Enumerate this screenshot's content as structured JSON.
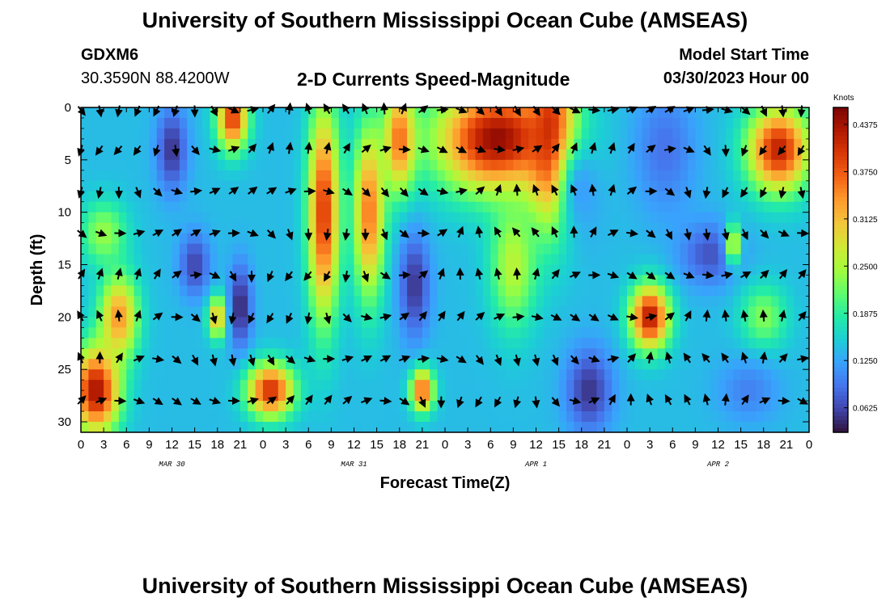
{
  "header": {
    "title": "University of Southern Mississippi Ocean Cube (AMSEAS)",
    "station_id": "GDXM6",
    "coordinates": "30.3590N  88.4200W",
    "subtitle": "2-D Currents Speed-Magnitude",
    "model_start_label": "Model Start Time",
    "model_start_value": "03/30/2023 Hour 00"
  },
  "footer": {
    "title": "University of Southern Mississippi Ocean Cube (AMSEAS)"
  },
  "colors": {
    "palette": [
      "#30123b",
      "#4145ab",
      "#4675ed",
      "#39a2fc",
      "#1bcfd4",
      "#24eca6",
      "#61fc6c",
      "#a4fc3c",
      "#d1e834",
      "#f3c63a",
      "#fe9b2d",
      "#f36315",
      "#d93806",
      "#b11901",
      "#7a0403"
    ]
  },
  "chart_data": {
    "type": "heatmap",
    "title": "2-D Currents Speed-Magnitude",
    "xlabel": "Forecast Time(Z)",
    "ylabel": "Depth (ft)",
    "x_tick_labels": [
      "0",
      "3",
      "6",
      "9",
      "12",
      "15",
      "18",
      "21",
      "0",
      "3",
      "6",
      "9",
      "12",
      "15",
      "18",
      "21",
      "0",
      "3",
      "6",
      "9",
      "12",
      "15",
      "18",
      "21",
      "0",
      "3",
      "6",
      "9",
      "12",
      "15",
      "18",
      "21",
      "0"
    ],
    "x_range_hours": [
      0,
      96
    ],
    "day_labels": [
      {
        "label": "MAR 30",
        "hour": 12
      },
      {
        "label": "MAR 31",
        "hour": 36
      },
      {
        "label": "APR 1",
        "hour": 60
      },
      {
        "label": "APR 2",
        "hour": 84
      }
    ],
    "y_ticks": [
      0,
      5,
      10,
      15,
      20,
      25,
      30
    ],
    "ylim": [
      0,
      31
    ],
    "colorbar": {
      "label": "Knots",
      "range": [
        0.03,
        0.46
      ],
      "ticks": [
        "0.0625",
        "0.1250",
        "0.1875",
        "0.2500",
        "0.3125",
        "0.3750",
        "0.4375"
      ]
    },
    "vector_depths_ft": [
      0,
      4,
      8,
      12,
      16,
      20,
      24,
      28
    ],
    "vector_hours_step": 2.5,
    "speed_field": {
      "description": "Current speed (knots) at depth/time; low values dark blue, high values dark red",
      "base": 0.14,
      "blobs": [
        {
          "hour": 2,
          "depth": 27,
          "value": 0.44,
          "sh": 3,
          "sd": 4
        },
        {
          "hour": 5,
          "depth": 20,
          "value": 0.34,
          "sh": 2.5,
          "sd": 4
        },
        {
          "hour": 3,
          "depth": 12,
          "value": 0.24,
          "sh": 3,
          "sd": 3
        },
        {
          "hour": 12,
          "depth": 4,
          "value": 0.05,
          "sh": 2,
          "sd": 4
        },
        {
          "hour": 20,
          "depth": 1,
          "value": 0.4,
          "sh": 2,
          "sd": 3
        },
        {
          "hour": 18,
          "depth": 20,
          "value": 0.33,
          "sh": 1.2,
          "sd": 2
        },
        {
          "hour": 21,
          "depth": 19,
          "value": 0.04,
          "sh": 1.5,
          "sd": 4
        },
        {
          "hour": 15,
          "depth": 15,
          "value": 0.06,
          "sh": 2,
          "sd": 3
        },
        {
          "hour": 25,
          "depth": 27,
          "value": 0.41,
          "sh": 3,
          "sd": 2.5
        },
        {
          "hour": 32,
          "depth": 10,
          "value": 0.4,
          "sh": 2,
          "sd": 10
        },
        {
          "hour": 38,
          "depth": 10,
          "value": 0.36,
          "sh": 2,
          "sd": 8
        },
        {
          "hour": 42,
          "depth": 3,
          "value": 0.36,
          "sh": 2,
          "sd": 5
        },
        {
          "hour": 44,
          "depth": 17,
          "value": 0.05,
          "sh": 2,
          "sd": 5
        },
        {
          "hour": 45,
          "depth": 27,
          "value": 0.38,
          "sh": 1.5,
          "sd": 2
        },
        {
          "hour": 55,
          "depth": 3,
          "value": 0.45,
          "sh": 8,
          "sd": 5
        },
        {
          "hour": 62,
          "depth": 3,
          "value": 0.42,
          "sh": 3,
          "sd": 8
        },
        {
          "hour": 57,
          "depth": 15,
          "value": 0.26,
          "sh": 3,
          "sd": 6
        },
        {
          "hour": 67,
          "depth": 27,
          "value": 0.05,
          "sh": 3,
          "sd": 4
        },
        {
          "hour": 66,
          "depth": 8,
          "value": 0.12,
          "sh": 3,
          "sd": 5
        },
        {
          "hour": 75,
          "depth": 20,
          "value": 0.43,
          "sh": 2.5,
          "sd": 3
        },
        {
          "hour": 77,
          "depth": 4,
          "value": 0.09,
          "sh": 4,
          "sd": 6
        },
        {
          "hour": 83,
          "depth": 14,
          "value": 0.07,
          "sh": 4,
          "sd": 3
        },
        {
          "hour": 86,
          "depth": 13,
          "value": 0.28,
          "sh": 1,
          "sd": 2
        },
        {
          "hour": 92,
          "depth": 4,
          "value": 0.42,
          "sh": 4,
          "sd": 4
        },
        {
          "hour": 90,
          "depth": 20,
          "value": 0.23,
          "sh": 3,
          "sd": 3
        },
        {
          "hour": 88,
          "depth": 27,
          "value": 0.1,
          "sh": 4,
          "sd": 3
        }
      ]
    }
  }
}
